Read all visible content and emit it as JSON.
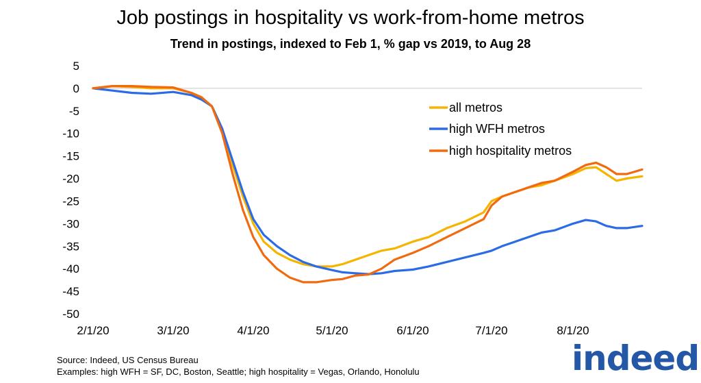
{
  "title": "Job postings in hospitality vs work-from-home metros",
  "subtitle": "Trend in postings, indexed to Feb 1, % gap vs 2019, to Aug 28",
  "footer": {
    "source": "Source: Indeed, US Census Bureau",
    "examples": "Examples: high WFH = SF, DC, Boston, Seattle; high hospitality = Vegas, Orlando,  Honolulu"
  },
  "logo_text": "indeed",
  "colors": {
    "all": "#f5b400",
    "wfh": "#2b6be6",
    "hosp": "#f26a10",
    "logo": "#2557a7"
  },
  "chart_data": {
    "type": "line",
    "title": "Job postings in hospitality vs work-from-home metros",
    "subtitle": "Trend in postings, indexed to Feb 1, % gap vs 2019, to Aug 28",
    "xlabel": "",
    "ylabel": "",
    "ylim": [
      -50,
      5
    ],
    "yticks": [
      5,
      0,
      -5,
      -10,
      -15,
      -20,
      -25,
      -30,
      -35,
      -40,
      -45,
      -50
    ],
    "xlim": [
      "2020-02-01",
      "2020-08-28"
    ],
    "xticks": [
      "2020-02-01",
      "2020-03-01",
      "2020-04-01",
      "2020-05-01",
      "2020-06-01",
      "2020-07-01",
      "2020-08-01"
    ],
    "xtick_labels": [
      "2/1/20",
      "3/1/20",
      "4/1/20",
      "5/1/20",
      "6/1/20",
      "7/1/20",
      "8/1/20"
    ],
    "grid": false,
    "legend": "right",
    "series": [
      {
        "name": "all metros",
        "color": "#f5b400",
        "x": [
          "2020-02-01",
          "2020-02-08",
          "2020-02-15",
          "2020-02-22",
          "2020-03-01",
          "2020-03-08",
          "2020-03-12",
          "2020-03-16",
          "2020-03-20",
          "2020-03-24",
          "2020-03-28",
          "2020-04-01",
          "2020-04-05",
          "2020-04-10",
          "2020-04-15",
          "2020-04-20",
          "2020-04-25",
          "2020-05-01",
          "2020-05-05",
          "2020-05-10",
          "2020-05-15",
          "2020-05-20",
          "2020-05-25",
          "2020-06-01",
          "2020-06-07",
          "2020-06-14",
          "2020-06-21",
          "2020-06-28",
          "2020-07-01",
          "2020-07-05",
          "2020-07-10",
          "2020-07-15",
          "2020-07-20",
          "2020-07-25",
          "2020-08-01",
          "2020-08-06",
          "2020-08-10",
          "2020-08-14",
          "2020-08-18",
          "2020-08-22",
          "2020-08-28"
        ],
        "values": [
          0,
          0.5,
          0.3,
          0,
          0,
          -1,
          -2,
          -4,
          -9,
          -17,
          -24,
          -30,
          -34,
          -36.5,
          -38,
          -39,
          -39.5,
          -39.5,
          -39,
          -38,
          -37,
          -36,
          -35.5,
          -34,
          -33,
          -31,
          -29.5,
          -27.5,
          -25,
          -24,
          -23,
          -22,
          -21.5,
          -20.5,
          -19,
          -17.7,
          -17.5,
          -19,
          -20.5,
          -20,
          -19.5
        ]
      },
      {
        "name": "high WFH metros",
        "color": "#2b6be6",
        "x": [
          "2020-02-01",
          "2020-02-08",
          "2020-02-15",
          "2020-02-22",
          "2020-03-01",
          "2020-03-08",
          "2020-03-12",
          "2020-03-16",
          "2020-03-20",
          "2020-03-24",
          "2020-03-28",
          "2020-04-01",
          "2020-04-05",
          "2020-04-10",
          "2020-04-15",
          "2020-04-20",
          "2020-04-25",
          "2020-05-01",
          "2020-05-05",
          "2020-05-10",
          "2020-05-15",
          "2020-05-20",
          "2020-05-25",
          "2020-06-01",
          "2020-06-07",
          "2020-06-14",
          "2020-06-21",
          "2020-06-28",
          "2020-07-01",
          "2020-07-05",
          "2020-07-10",
          "2020-07-15",
          "2020-07-20",
          "2020-07-25",
          "2020-08-01",
          "2020-08-06",
          "2020-08-10",
          "2020-08-14",
          "2020-08-18",
          "2020-08-22",
          "2020-08-28"
        ],
        "values": [
          0,
          -0.5,
          -1,
          -1.2,
          -0.8,
          -1.5,
          -2.5,
          -4,
          -9,
          -16,
          -23,
          -29,
          -32.5,
          -35,
          -37,
          -38.5,
          -39.5,
          -40.3,
          -40.8,
          -41,
          -41.2,
          -41,
          -40.5,
          -40.2,
          -39.5,
          -38.5,
          -37.5,
          -36.5,
          -36,
          -35,
          -34,
          -33,
          -32,
          -31.5,
          -30,
          -29.2,
          -29.5,
          -30.5,
          -31,
          -31,
          -30.5
        ]
      },
      {
        "name": "high hospitality metros",
        "color": "#f26a10",
        "x": [
          "2020-02-01",
          "2020-02-08",
          "2020-02-15",
          "2020-02-22",
          "2020-03-01",
          "2020-03-08",
          "2020-03-12",
          "2020-03-16",
          "2020-03-20",
          "2020-03-24",
          "2020-03-28",
          "2020-04-01",
          "2020-04-05",
          "2020-04-10",
          "2020-04-15",
          "2020-04-20",
          "2020-04-25",
          "2020-05-01",
          "2020-05-05",
          "2020-05-10",
          "2020-05-15",
          "2020-05-20",
          "2020-05-25",
          "2020-06-01",
          "2020-06-07",
          "2020-06-14",
          "2020-06-21",
          "2020-06-28",
          "2020-07-01",
          "2020-07-05",
          "2020-07-10",
          "2020-07-15",
          "2020-07-20",
          "2020-07-25",
          "2020-08-01",
          "2020-08-06",
          "2020-08-10",
          "2020-08-14",
          "2020-08-18",
          "2020-08-22",
          "2020-08-28"
        ],
        "values": [
          0,
          0.5,
          0.5,
          0.3,
          0.2,
          -1,
          -2,
          -4,
          -10,
          -19,
          -27,
          -33,
          -37,
          -40,
          -42,
          -43,
          -43,
          -42.5,
          -42.3,
          -41.5,
          -41.3,
          -40,
          -38,
          -36.5,
          -35,
          -33,
          -31,
          -29,
          -26,
          -24,
          -23,
          -22,
          -21,
          -20.5,
          -18.5,
          -17,
          -16.5,
          -17.5,
          -19,
          -19,
          -18
        ]
      }
    ]
  }
}
